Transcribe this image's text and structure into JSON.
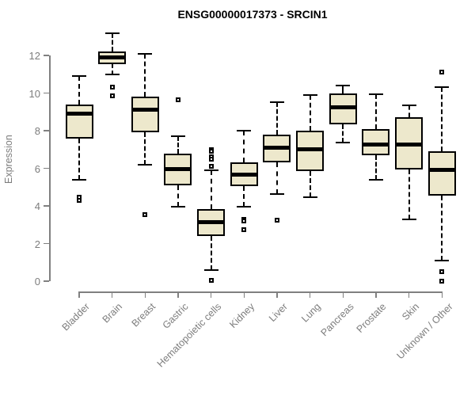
{
  "chart_data": {
    "type": "boxplot",
    "title": "ENSG00000017373 - SRCIN1",
    "xlabel": "",
    "ylabel": "Expression",
    "ylim": [
      0,
      13.4
    ],
    "yticks": [
      0,
      2,
      4,
      6,
      8,
      10,
      12
    ],
    "grid": false,
    "legend": "none",
    "categories": [
      "Bladder",
      "Brain",
      "Breast",
      "Gastric",
      "Hematopoietic cells",
      "Kidney",
      "Liver",
      "Lung",
      "Pancreas",
      "Prostate",
      "Skin",
      "Unknown / Other"
    ],
    "boxes": [
      {
        "category": "Bladder",
        "whisker_low": 5.4,
        "q1": 7.6,
        "median": 8.9,
        "q3": 9.4,
        "whisker_high": 10.9,
        "outliers": [
          4.45,
          4.3
        ]
      },
      {
        "category": "Brain",
        "whisker_low": 11.0,
        "q1": 11.55,
        "median": 11.9,
        "q3": 12.2,
        "whisker_high": 13.2,
        "outliers": [
          10.3,
          9.85
        ]
      },
      {
        "category": "Breast",
        "whisker_low": 6.2,
        "q1": 7.9,
        "median": 9.1,
        "q3": 9.8,
        "whisker_high": 12.1,
        "outliers": [
          3.55
        ]
      },
      {
        "category": "Gastric",
        "whisker_low": 3.95,
        "q1": 5.1,
        "median": 5.95,
        "q3": 6.8,
        "whisker_high": 7.7,
        "outliers": [
          9.65
        ]
      },
      {
        "category": "Hematopoietic cells",
        "whisker_low": 0.6,
        "q1": 2.4,
        "median": 3.15,
        "q3": 3.85,
        "whisker_high": 5.9,
        "outliers": [
          7.0,
          6.9,
          6.6,
          6.5,
          6.1,
          0.05
        ]
      },
      {
        "category": "Kidney",
        "whisker_low": 3.95,
        "q1": 5.05,
        "median": 5.65,
        "q3": 6.3,
        "whisker_high": 8.0,
        "outliers": [
          3.3,
          3.2,
          2.75
        ]
      },
      {
        "category": "Liver",
        "whisker_low": 4.65,
        "q1": 6.3,
        "median": 7.1,
        "q3": 7.8,
        "whisker_high": 9.5,
        "outliers": [
          3.25
        ]
      },
      {
        "category": "Lung",
        "whisker_low": 4.45,
        "q1": 5.85,
        "median": 7.0,
        "q3": 8.0,
        "whisker_high": 9.9,
        "outliers": []
      },
      {
        "category": "Pancreas",
        "whisker_low": 7.35,
        "q1": 8.35,
        "median": 9.25,
        "q3": 10.0,
        "whisker_high": 10.4,
        "outliers": []
      },
      {
        "category": "Prostate",
        "whisker_low": 5.4,
        "q1": 6.7,
        "median": 7.25,
        "q3": 8.1,
        "whisker_high": 9.95,
        "outliers": []
      },
      {
        "category": "Skin",
        "whisker_low": 3.3,
        "q1": 5.95,
        "median": 7.25,
        "q3": 8.7,
        "whisker_high": 9.35,
        "outliers": []
      },
      {
        "category": "Unknown / Other",
        "whisker_low": 1.1,
        "q1": 4.55,
        "median": 5.9,
        "q3": 6.9,
        "whisker_high": 10.3,
        "outliers": [
          11.1,
          0.5,
          0.0
        ]
      }
    ],
    "colors": {
      "box_fill": "#EDE8CC",
      "box_border": "#000000",
      "axis": "#808080",
      "axis_text": "#7d7d7d",
      "title_text": "#000000"
    }
  }
}
